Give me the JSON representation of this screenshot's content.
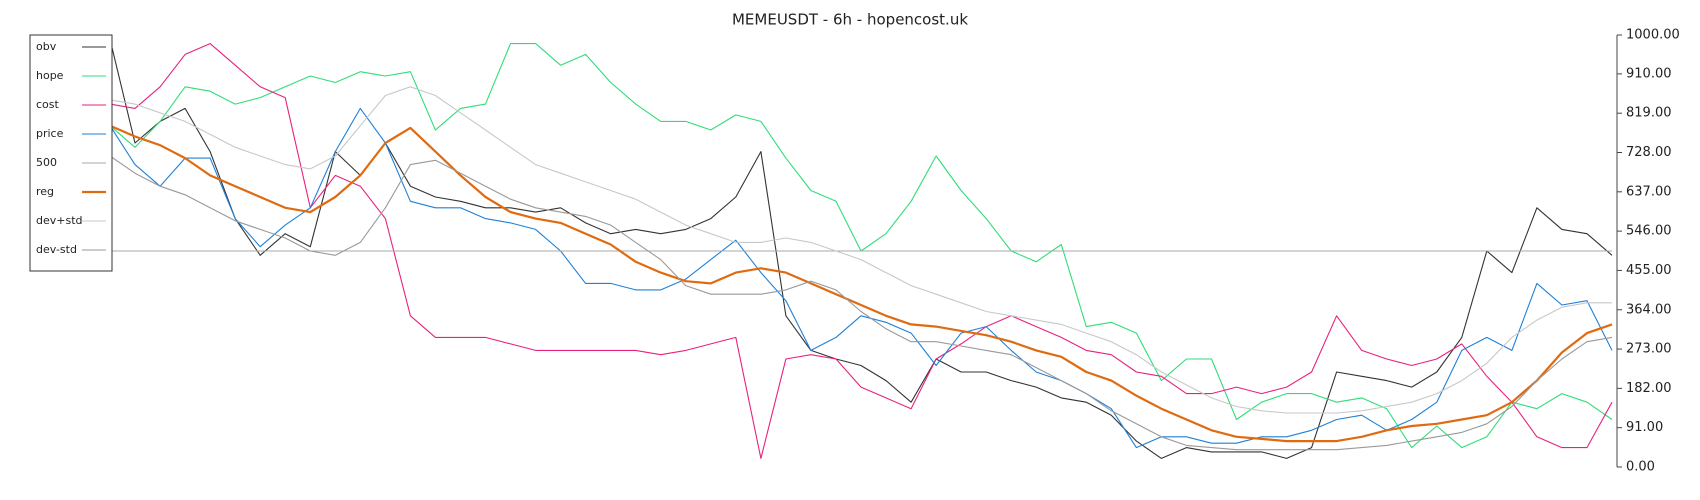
{
  "chart_data": {
    "type": "line",
    "title": "MEMEUSDT - 6h - hopencost.uk",
    "categories": [
      null,
      null,
      null,
      null,
      null,
      null,
      null,
      null,
      null,
      null,
      null,
      null,
      null,
      null,
      null,
      null,
      null,
      null,
      null,
      null,
      null,
      null,
      null,
      null,
      null,
      null,
      null,
      null,
      null,
      null,
      null,
      null,
      null,
      null,
      null,
      null,
      null,
      null,
      null,
      null,
      null,
      null,
      null,
      null,
      null,
      null,
      null,
      null,
      null,
      null,
      null,
      null,
      null,
      null,
      null,
      null,
      null,
      null,
      null,
      null,
      null
    ],
    "ylim": [
      0,
      1000
    ],
    "yticks": [
      {
        "value": 0,
        "label": "0.00"
      },
      {
        "value": 91,
        "label": "91.00"
      },
      {
        "value": 182,
        "label": "182.00"
      },
      {
        "value": 273,
        "label": "273.00"
      },
      {
        "value": 364,
        "label": "364.00"
      },
      {
        "value": 455,
        "label": "455.00"
      },
      {
        "value": 546,
        "label": "546.00"
      },
      {
        "value": 637,
        "label": "637.00"
      },
      {
        "value": 728,
        "label": "728.00"
      },
      {
        "value": 819,
        "label": "819.00"
      },
      {
        "value": 910,
        "label": "910.00"
      },
      {
        "value": 1000,
        "label": "1000.00"
      }
    ],
    "legend": "upper left",
    "series": [
      {
        "name": "obv",
        "color": "#333333",
        "values": [
          990,
          750,
          800,
          830,
          730,
          575,
          490,
          540,
          510,
          730,
          675,
          750,
          650,
          625,
          615,
          600,
          600,
          590,
          600,
          565,
          540,
          550,
          540,
          550,
          575,
          625,
          730,
          350,
          270,
          250,
          235,
          200,
          150,
          250,
          220,
          220,
          200,
          185,
          160,
          150,
          120,
          60,
          20,
          45,
          35,
          35,
          35,
          20,
          45,
          220,
          210,
          200,
          185,
          220,
          300,
          500,
          450,
          600,
          550,
          540,
          490
        ]
      },
      {
        "name": "hope",
        "color": "#2fdd78",
        "values": [
          790,
          740,
          800,
          880,
          870,
          840,
          855,
          880,
          905,
          890,
          915,
          905,
          915,
          780,
          830,
          840,
          980,
          980,
          930,
          955,
          890,
          840,
          800,
          800,
          780,
          815,
          800,
          715,
          640,
          615,
          500,
          540,
          615,
          720,
          640,
          575,
          500,
          475,
          515,
          325,
          335,
          310,
          200,
          250,
          250,
          110,
          150,
          170,
          170,
          150,
          160,
          135,
          45,
          95,
          45,
          70,
          150,
          135,
          170,
          150,
          110
        ]
      },
      {
        "name": "cost",
        "color": "#e8217d",
        "values": [
          840,
          830,
          880,
          955,
          980,
          930,
          880,
          855,
          600,
          675,
          650,
          575,
          350,
          300,
          300,
          300,
          285,
          270,
          270,
          270,
          270,
          270,
          260,
          270,
          285,
          300,
          20,
          250,
          260,
          250,
          185,
          160,
          135,
          250,
          285,
          325,
          350,
          325,
          300,
          270,
          260,
          220,
          210,
          170,
          170,
          185,
          170,
          185,
          220,
          350,
          270,
          250,
          235,
          250,
          285,
          210,
          150,
          70,
          45,
          45,
          150
        ]
      },
      {
        "name": "price",
        "color": "#1f80d8",
        "values": [
          790,
          700,
          650,
          715,
          715,
          575,
          510,
          560,
          600,
          730,
          830,
          750,
          615,
          600,
          600,
          575,
          565,
          550,
          500,
          425,
          425,
          410,
          410,
          435,
          480,
          525,
          450,
          385,
          270,
          300,
          350,
          335,
          310,
          235,
          310,
          325,
          270,
          220,
          200,
          170,
          135,
          45,
          70,
          70,
          55,
          55,
          70,
          70,
          85,
          110,
          120,
          85,
          110,
          150,
          270,
          300,
          270,
          425,
          375,
          385,
          270
        ]
      },
      {
        "name": "500",
        "color": "#aaaaaa",
        "values": [
          500,
          500,
          500,
          500,
          500,
          500,
          500,
          500,
          500,
          500,
          500,
          500,
          500,
          500,
          500,
          500,
          500,
          500,
          500,
          500,
          500,
          500,
          500,
          500,
          500,
          500,
          500,
          500,
          500,
          500,
          500,
          500,
          500,
          500,
          500,
          500,
          500,
          500,
          500,
          500,
          500,
          500,
          500,
          500,
          500,
          500,
          500,
          500,
          500,
          500,
          500,
          500,
          500,
          500,
          500,
          500,
          500,
          500,
          500,
          500,
          500
        ]
      },
      {
        "name": "reg",
        "color": "#e06a10",
        "values": [
          790,
          765,
          745,
          715,
          675,
          650,
          625,
          600,
          590,
          625,
          675,
          750,
          785,
          730,
          675,
          625,
          590,
          575,
          565,
          540,
          515,
          475,
          450,
          430,
          425,
          450,
          460,
          450,
          425,
          400,
          375,
          350,
          330,
          325,
          315,
          305,
          290,
          270,
          255,
          220,
          200,
          165,
          135,
          110,
          85,
          70,
          65,
          60,
          60,
          60,
          70,
          85,
          95,
          100,
          110,
          120,
          150,
          200,
          265,
          310,
          330
        ]
      },
      {
        "name": "dev+std",
        "color": "#c8c8c8",
        "values": [
          850,
          840,
          820,
          800,
          770,
          740,
          720,
          700,
          690,
          720,
          790,
          860,
          880,
          860,
          820,
          780,
          740,
          700,
          680,
          660,
          640,
          620,
          590,
          560,
          540,
          520,
          520,
          530,
          520,
          500,
          480,
          450,
          420,
          400,
          380,
          360,
          350,
          340,
          330,
          310,
          290,
          260,
          220,
          190,
          160,
          140,
          130,
          125,
          125,
          125,
          130,
          140,
          150,
          170,
          200,
          240,
          300,
          340,
          370,
          380,
          380
        ]
      },
      {
        "name": "dev-std",
        "color": "#999999",
        "values": [
          720,
          680,
          650,
          630,
          600,
          570,
          550,
          530,
          500,
          490,
          520,
          600,
          700,
          710,
          680,
          650,
          620,
          600,
          590,
          580,
          560,
          520,
          480,
          420,
          400,
          400,
          400,
          410,
          430,
          410,
          360,
          320,
          290,
          290,
          280,
          270,
          260,
          230,
          200,
          170,
          130,
          100,
          70,
          50,
          45,
          40,
          40,
          40,
          40,
          40,
          45,
          50,
          60,
          70,
          80,
          100,
          140,
          200,
          250,
          290,
          300
        ]
      }
    ]
  }
}
